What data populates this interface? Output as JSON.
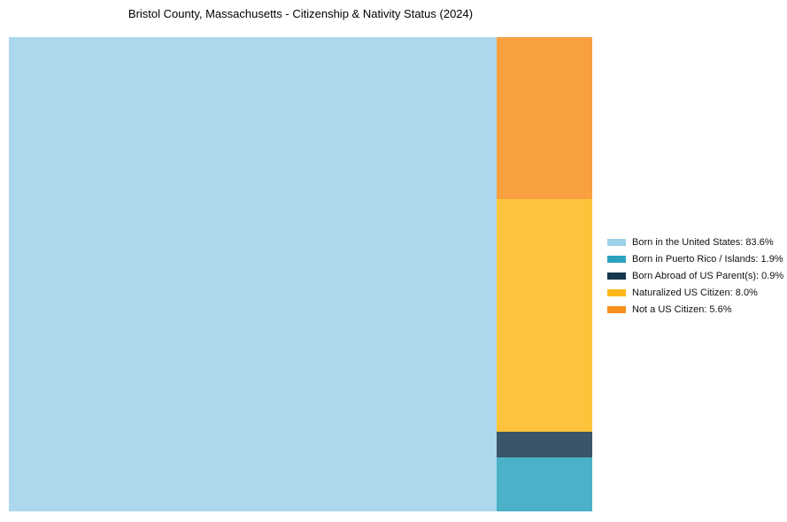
{
  "chart_data": {
    "type": "treemap",
    "title": "Bristol County, Massachusetts - Citizenship & Nativity Status (2024)",
    "unit": "%",
    "categories": [
      "Born in the United States",
      "Born in Puerto Rico / Islands",
      "Born Abroad of US Parent(s)",
      "Naturalized US Citizen",
      "Not a US Citizen"
    ],
    "values": [
      83.6,
      1.9,
      0.9,
      8.0,
      5.6
    ],
    "colors": [
      "#9ED1EA",
      "#2BA3BE",
      "#17374E",
      "#FDB81A",
      "#F78F1E"
    ],
    "legend_position": "right",
    "layout_hint": {
      "left_rect": "Born in the United States",
      "right_column_top_to_bottom": [
        "Not a US Citizen",
        "Naturalized US Citizen",
        "Born Abroad of US Parent(s)",
        "Born in Puerto Rico / Islands"
      ]
    }
  },
  "legend": {
    "items": [
      {
        "label": "Born in the United States: 83.6%",
        "color": "#9ED1EA"
      },
      {
        "label": "Born in Puerto Rico / Islands: 1.9%",
        "color": "#2BA3BE"
      },
      {
        "label": "Born Abroad of US Parent(s): 0.9%",
        "color": "#17374E"
      },
      {
        "label": "Naturalized US Citizen: 8.0%",
        "color": "#FDB81A"
      },
      {
        "label": "Not a US Citizen: 5.6%",
        "color": "#F78F1E"
      }
    ]
  }
}
